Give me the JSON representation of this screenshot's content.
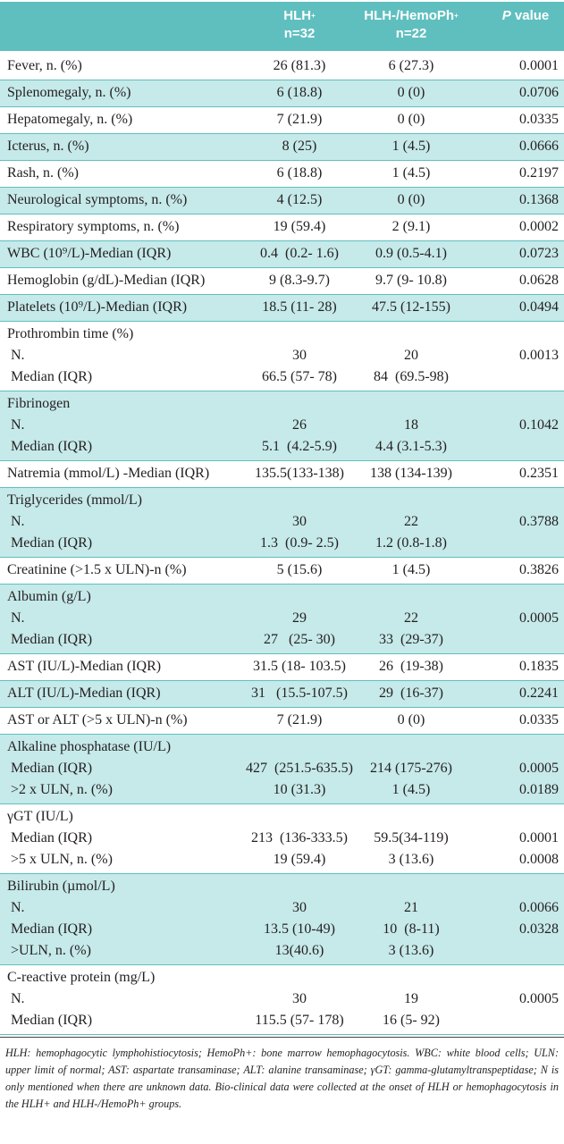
{
  "header": {
    "col1_title": "HLH",
    "col1_sup": "+",
    "col1_n": "n=32",
    "col2_title": "HLH-/HemoPh",
    "col2_sup": "+",
    "col2_n": "n=22",
    "col3_italic": "P",
    "col3_rest": " value"
  },
  "groups": [
    {
      "lines": [
        {
          "label": "Fever, n. (%)",
          "hlh": "26 (81.3)",
          "hemo": "6 (27.3)",
          "p": "0.0001"
        }
      ]
    },
    {
      "lines": [
        {
          "label": "Splenomegaly, n. (%)",
          "hlh": "6 (18.8)",
          "hemo": "0 (0)",
          "p": "0.0706"
        }
      ]
    },
    {
      "lines": [
        {
          "label": "Hepatomegaly, n. (%)",
          "hlh": "7 (21.9)",
          "hemo": "0 (0)",
          "p": "0.0335"
        }
      ]
    },
    {
      "lines": [
        {
          "label": "Icterus, n. (%)",
          "hlh": "8 (25)",
          "hemo": "1 (4.5)",
          "p": "0.0666"
        }
      ]
    },
    {
      "lines": [
        {
          "label": "Rash, n. (%)",
          "hlh": "6 (18.8)",
          "hemo": "1 (4.5)",
          "p": "0.2197"
        }
      ]
    },
    {
      "lines": [
        {
          "label": "Neurological symptoms, n. (%)",
          "hlh": "4 (12.5)",
          "hemo": "0 (0)",
          "p": "0.1368"
        }
      ]
    },
    {
      "lines": [
        {
          "label": "Respiratory symptoms, n. (%)",
          "hlh": "19 (59.4)",
          "hemo": "2 (9.1)",
          "p": "0.0002"
        }
      ]
    },
    {
      "lines": [
        {
          "label": "WBC (10⁹/L)-Median (IQR)",
          "hlh": "0.4  (0.2- 1.6)",
          "hemo": "0.9 (0.5-4.1)",
          "p": "0.0723"
        }
      ]
    },
    {
      "lines": [
        {
          "label": "Hemoglobin (g/dL)-Median (IQR)",
          "hlh": "9 (8.3-9.7)",
          "hemo": "9.7 (9- 10.8)",
          "p": "0.0628"
        }
      ]
    },
    {
      "lines": [
        {
          "label": "Platelets (10⁹/L)-Median (IQR)",
          "hlh": "18.5 (11- 28)",
          "hemo": "47.5 (12-155)",
          "p": "0.0494"
        }
      ]
    },
    {
      "lines": [
        {
          "label": "Prothrombin time (%)"
        },
        {
          "label": "N.",
          "hlh": "30",
          "hemo": "20",
          "p": "0.0013"
        },
        {
          "label": "Median (IQR)",
          "hlh": "66.5 (57- 78)",
          "hemo": "84  (69.5-98)"
        }
      ]
    },
    {
      "lines": [
        {
          "label": "Fibrinogen"
        },
        {
          "label": "N.",
          "hlh": "26",
          "hemo": "18",
          "p": "0.1042"
        },
        {
          "label": "Median (IQR)",
          "hlh": "5.1  (4.2-5.9)",
          "hemo": "4.4 (3.1-5.3)"
        }
      ]
    },
    {
      "lines": [
        {
          "label": "Natremia (mmol/L) -Median (IQR)",
          "hlh": "135.5(133-138)",
          "hemo": "138 (134-139)",
          "p": "0.2351"
        }
      ]
    },
    {
      "lines": [
        {
          "label": "Triglycerides (mmol/L)"
        },
        {
          "label": "N.",
          "hlh": "30",
          "hemo": "22",
          "p": "0.3788"
        },
        {
          "label": "Median (IQR)",
          "hlh": "1.3  (0.9- 2.5)",
          "hemo": "1.2 (0.8-1.8)"
        }
      ]
    },
    {
      "lines": [
        {
          "label": "Creatinine (>1.5 x ULN)-n (%)",
          "hlh": "5 (15.6)",
          "hemo": "1 (4.5)",
          "p": "0.3826"
        }
      ]
    },
    {
      "lines": [
        {
          "label": "Albumin (g/L)"
        },
        {
          "label": "N.",
          "hlh": "29",
          "hemo": "22",
          "p": "0.0005"
        },
        {
          "label": "Median (IQR)",
          "hlh": "27   (25- 30)",
          "hemo": "33  (29-37)"
        }
      ]
    },
    {
      "lines": [
        {
          "label": "AST (IU/L)-Median (IQR)",
          "hlh": "31.5 (18- 103.5)",
          "hemo": "26  (19-38)",
          "p": "0.1835"
        }
      ]
    },
    {
      "lines": [
        {
          "label": "ALT (IU/L)-Median (IQR)",
          "hlh": "31   (15.5-107.5)",
          "hemo": "29  (16-37)",
          "p": "0.2241"
        }
      ]
    },
    {
      "lines": [
        {
          "label": "AST or ALT (>5 x ULN)-n (%)",
          "hlh": "7 (21.9)",
          "hemo": "0 (0)",
          "p": "0.0335"
        }
      ]
    },
    {
      "lines": [
        {
          "label": "Alkaline phosphatase (IU/L)"
        },
        {
          "label": "Median (IQR)",
          "hlh": "427  (251.5-635.5)",
          "hemo": "214 (175-276)",
          "p": "0.0005"
        },
        {
          "label": ">2 x ULN, n. (%)",
          "hlh": "10 (31.3)",
          "hemo": "1 (4.5)",
          "p": "0.0189"
        }
      ]
    },
    {
      "lines": [
        {
          "label": "γGT (IU/L)"
        },
        {
          "label": "Median (IQR)",
          "hlh": "213  (136-333.5)",
          "hemo": "59.5(34-119)",
          "p": "0.0001"
        },
        {
          "label": ">5 x ULN, n. (%)",
          "hlh": "19 (59.4)",
          "hemo": "3 (13.6)",
          "p": "0.0008"
        }
      ]
    },
    {
      "lines": [
        {
          "label": "Bilirubin (µmol/L)"
        },
        {
          "label": "N.",
          "hlh": "30",
          "hemo": "21",
          "p": "0.0066"
        },
        {
          "label": "Median (IQR)",
          "hlh": "13.5 (10-49)",
          "hemo": "10  (8-11)",
          "p": "0.0328"
        },
        {
          "label": ">ULN, n. (%)",
          "hlh": "13(40.6)",
          "hemo": "3 (13.6)"
        }
      ]
    },
    {
      "lines": [
        {
          "label": "C-reactive protein (mg/L)"
        },
        {
          "label": "N.",
          "hlh": "30",
          "hemo": "19",
          "p": "0.0005"
        },
        {
          "label": "Median (IQR)",
          "hlh": "115.5 (57- 178)",
          "hemo": "16 (5- 92)"
        }
      ]
    }
  ],
  "footnote": "HLH: hemophagocytic lymphohistiocytosis; HemoPh+: bone marrow hemophagocytosis. WBC: white blood cells; ULN: upper limit of normal; AST: aspartate transaminase; ALT: alanine transaminase; γGT: gamma-glutamyltranspeptidase; N is only mentioned when there are unknown data. Bio-clinical data were collected at the onset of HLH or hemophagocytosis in the HLH+ and HLH-/HemoPh+ groups.",
  "colors": {
    "header": "#5fbfbf",
    "shade": "#c6e9e9"
  }
}
